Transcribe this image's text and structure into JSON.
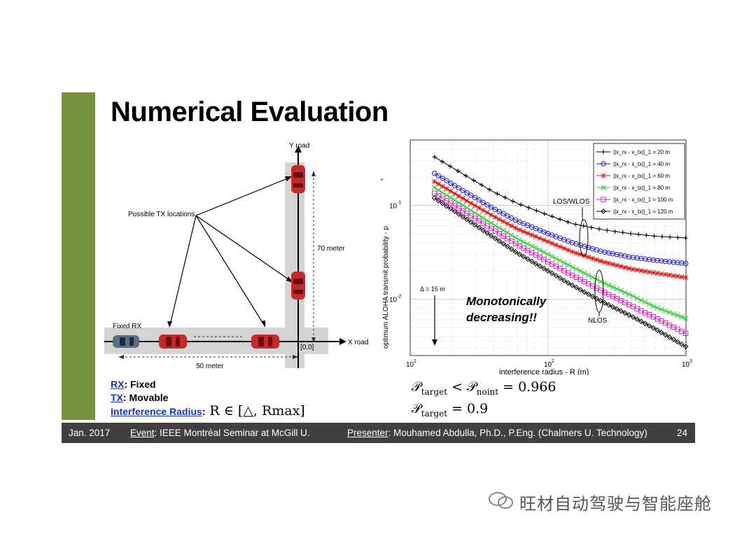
{
  "slide": {
    "title": "Numerical Evaluation",
    "accent_color": "#77923c"
  },
  "diagram": {
    "y_road": "Y road",
    "x_road": "X road",
    "possible_tx": "Possible TX locations",
    "fixed_rx": "Fixed RX",
    "dist_70": "70 meter",
    "dist_50": "50 meter",
    "origin": "[0,0]",
    "car_color": "#c8282a"
  },
  "notes": {
    "rx_label": "RX",
    "rx_text": ": Fixed",
    "tx_label": "TX",
    "tx_text": ": Movable",
    "radius_label": "Interference Radius",
    "radius_colon": ":",
    "radius_math": "R ∈ [△, Rmax]"
  },
  "chart_data": {
    "type": "line",
    "xlabel": "interference radius - R (m)",
    "ylabel": "optimum ALOHA transmit probability - p",
    "x_scale": "log",
    "y_scale": "log",
    "xlim": [
      10,
      1000
    ],
    "ylim": [
      0.0025,
      0.5
    ],
    "x_ticks": [
      "10",
      "10",
      "10"
    ],
    "x_tick_exp": [
      "1",
      "2",
      "3"
    ],
    "y_ticks": [
      "10",
      "10"
    ],
    "y_tick_exp": [
      "-1",
      "-2"
    ],
    "grid": true,
    "legend_position": "top-right",
    "series": [
      {
        "name": "||x_rx - x_tx||_1 = 20 m",
        "color": "#000000",
        "marker": "plus",
        "x": [
          15,
          25,
          40,
          60,
          100,
          150,
          250,
          400,
          600,
          1000
        ],
        "y": [
          0.33,
          0.21,
          0.14,
          0.105,
          0.079,
          0.064,
          0.055,
          0.05,
          0.047,
          0.045
        ]
      },
      {
        "name": "||x_rx - x_tx||_1 = 40 m",
        "color": "#1a1ad0",
        "marker": "circle",
        "x": [
          15,
          25,
          40,
          60,
          100,
          150,
          250,
          400,
          600,
          1000
        ],
        "y": [
          0.22,
          0.14,
          0.093,
          0.068,
          0.05,
          0.04,
          0.032,
          0.028,
          0.026,
          0.024
        ]
      },
      {
        "name": "||x_rx - x_tx||_1 = 60 m",
        "color": "#e01818",
        "marker": "star",
        "x": [
          15,
          25,
          40,
          60,
          100,
          150,
          250,
          400,
          600,
          1000
        ],
        "y": [
          0.18,
          0.115,
          0.077,
          0.056,
          0.041,
          0.032,
          0.025,
          0.021,
          0.019,
          0.017
        ]
      },
      {
        "name": "||x_rx - x_tx||_1 = 80 m",
        "color": "#22cc22",
        "marker": "x",
        "x": [
          15,
          25,
          40,
          60,
          100,
          150,
          250,
          400,
          600,
          1000
        ],
        "y": [
          0.155,
          0.097,
          0.063,
          0.044,
          0.03,
          0.022,
          0.015,
          0.011,
          0.0082,
          0.0062
        ]
      },
      {
        "name": "||x_rx - x_tx||_1 = 100 m",
        "color": "#e020c8",
        "marker": "square",
        "x": [
          15,
          25,
          40,
          60,
          100,
          150,
          250,
          400,
          600,
          1000
        ],
        "y": [
          0.135,
          0.085,
          0.055,
          0.038,
          0.025,
          0.018,
          0.012,
          0.0085,
          0.0063,
          0.0043
        ]
      },
      {
        "name": "||x_rx - x_tx||_1 = 120 m",
        "color": "#000000",
        "marker": "diamond",
        "x": [
          15,
          25,
          40,
          60,
          100,
          150,
          250,
          400,
          600,
          1000
        ],
        "y": [
          0.12,
          0.073,
          0.046,
          0.031,
          0.02,
          0.014,
          0.0093,
          0.0066,
          0.0048,
          0.0031
        ]
      }
    ],
    "annotations": {
      "los": "LOS/WLOS",
      "nlos": "NLOS",
      "delta": "Δ = 15 m",
      "mono": "Monotonically decreasing!!"
    }
  },
  "formulas": {
    "line1_a": "𝒫",
    "line1_a_sub": "target",
    "line1_mid": " < 𝒫",
    "line1_b_sub": "noint",
    "line1_end": " = 0.966",
    "line2_a": "𝒫",
    "line2_a_sub": "target",
    "line2_end": " = 0.9"
  },
  "footer": {
    "date": "Jan. 2017",
    "event_label": "Event",
    "event_text": ": IEEE Montréal Seminar at McGill U.",
    "presenter_label": "Presenter",
    "presenter_text": ": Mouhamed Abdulla, Ph.D., P.Eng. (Chalmers U. Technology)",
    "page": "24"
  },
  "watermark": {
    "text": "旺材自动驾驶与智能座舱"
  }
}
